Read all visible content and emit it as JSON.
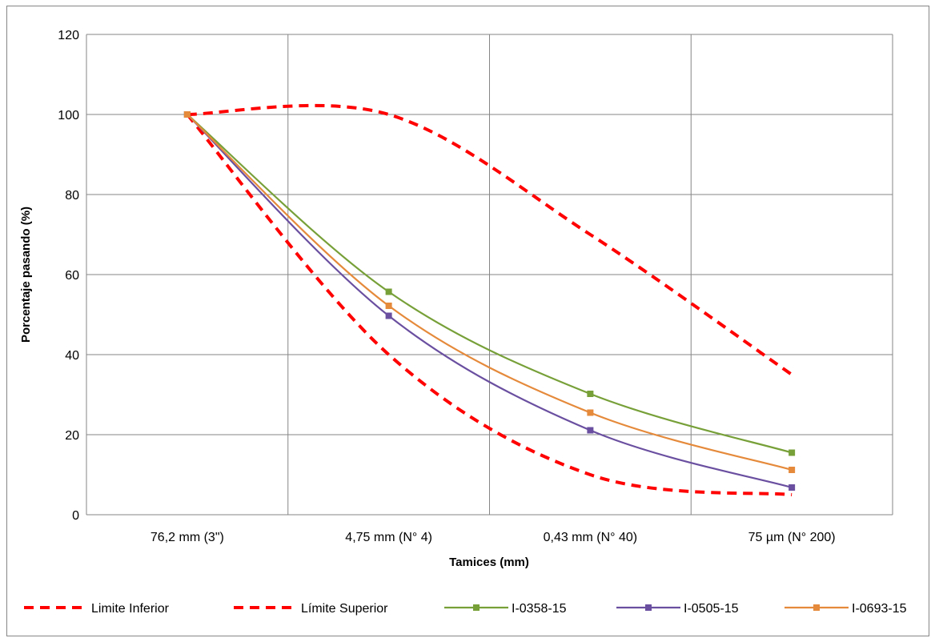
{
  "chart_data": {
    "type": "line",
    "title": "",
    "xlabel": "Tamices (mm)",
    "ylabel": "Porcentaje pasando (%)",
    "categories": [
      "76,2 mm (3\")",
      "4,75 mm (N° 4)",
      "0,43 mm (N° 40)",
      "75 µm   (N° 200)"
    ],
    "ylim": [
      0,
      120
    ],
    "yticks": [
      0,
      20,
      40,
      60,
      80,
      100,
      120
    ],
    "grid": true,
    "legend_position": "bottom",
    "series": [
      {
        "name": "Limite Inferior",
        "values": [
          100,
          40,
          10,
          5
        ],
        "color": "#ff0000",
        "style": "dashed",
        "marker": "none"
      },
      {
        "name": "Límite Superior",
        "values": [
          100,
          100,
          70,
          35
        ],
        "color": "#ff0000",
        "style": "dashed",
        "marker": "none"
      },
      {
        "name": "I-0358-15",
        "values": [
          100,
          55.7,
          30.2,
          15.5
        ],
        "color": "#77a039",
        "style": "solid",
        "marker": "square"
      },
      {
        "name": "I-0505-15",
        "values": [
          100,
          49.7,
          21.1,
          6.8
        ],
        "color": "#6a4fa0",
        "style": "solid",
        "marker": "square"
      },
      {
        "name": "I-0693-15",
        "values": [
          100,
          52.2,
          25.5,
          11.2
        ],
        "color": "#e5893a",
        "style": "solid",
        "marker": "square"
      }
    ]
  }
}
